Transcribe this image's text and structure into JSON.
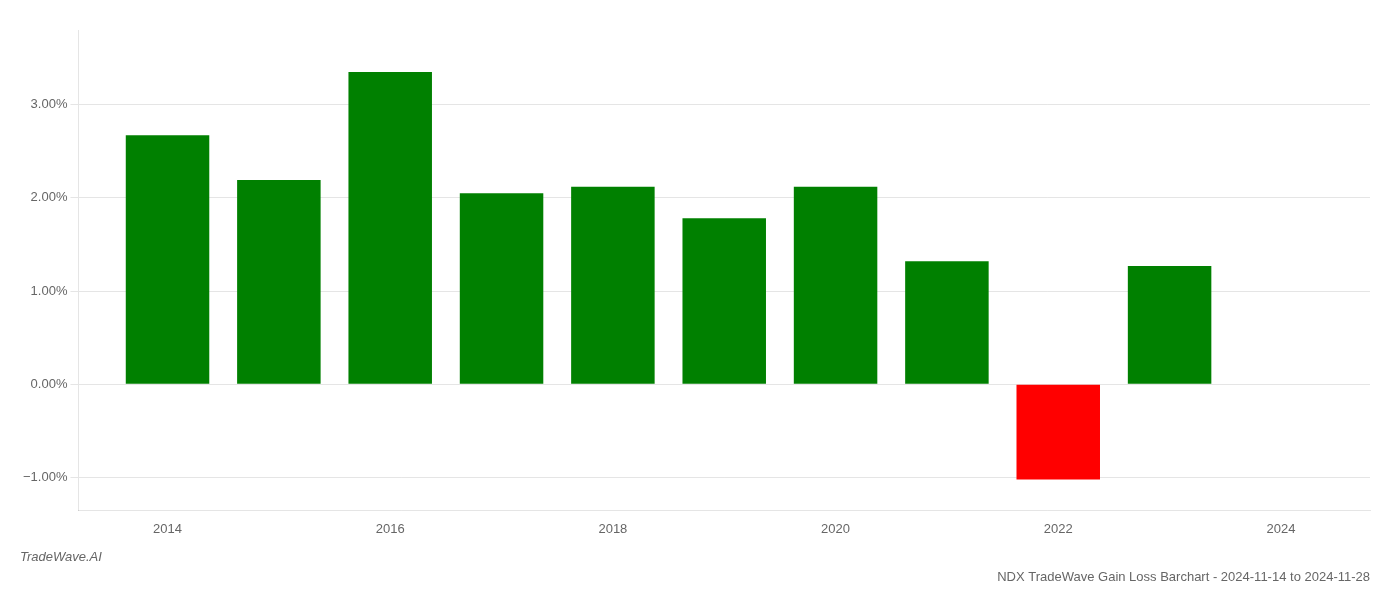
{
  "chart_data": {
    "type": "bar",
    "title": "NDX TradeWave Gain Loss Barchart - 2024-11-14 to 2024-11-28",
    "annotations": [
      "TradeWave.AI"
    ],
    "x": [
      2014,
      2015,
      2016,
      2017,
      2018,
      2019,
      2020,
      2021,
      2022,
      2023
    ],
    "values": [
      0.0267,
      0.0219,
      0.0335,
      0.0205,
      0.0212,
      0.0178,
      0.0212,
      0.0132,
      -0.0102,
      0.0127
    ],
    "colors": [
      "#008000",
      "#008000",
      "#008000",
      "#008000",
      "#008000",
      "#008000",
      "#008000",
      "#008000",
      "#ff0000",
      "#008000"
    ],
    "xlim": [
      2013.2,
      2024.8
    ],
    "xticks": [
      2014,
      2016,
      2018,
      2020,
      2022,
      2024
    ],
    "ylim": [
      -0.0135,
      0.038
    ],
    "yticks": [
      {
        "value": -0.01,
        "label": "−1.00%"
      },
      {
        "value": 0.0,
        "label": "0.00%"
      },
      {
        "value": 0.01,
        "label": "1.00%"
      },
      {
        "value": 0.02,
        "label": "2.00%"
      },
      {
        "value": 0.03,
        "label": "3.00%"
      }
    ],
    "grid": "y"
  }
}
